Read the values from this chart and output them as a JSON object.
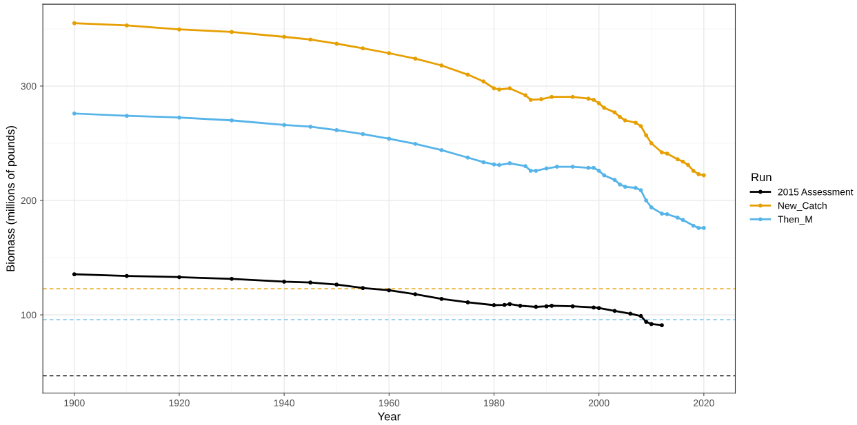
{
  "chart_data": {
    "type": "line",
    "xlabel": "Year",
    "ylabel": "Biomass (millions of pounds)",
    "legend_title": "Run",
    "xlim": [
      1894,
      2026
    ],
    "xticks": [
      1900,
      1920,
      1940,
      1960,
      1980,
      2000,
      2020
    ],
    "ylim": [
      31.6,
      371.5
    ],
    "yticks": [
      100,
      200,
      300
    ],
    "grid": true,
    "legend": "right",
    "marker": "circle",
    "line_style": "solid",
    "series": [
      {
        "name": "2015 Assessment",
        "color": "#000000",
        "x": [
          1900,
          1910,
          1920,
          1930,
          1940,
          1945,
          1950,
          1955,
          1960,
          1965,
          1970,
          1975,
          1980,
          1982,
          1983,
          1985,
          1988,
          1990,
          1991,
          1995,
          1999,
          2000,
          2003,
          2006,
          2008,
          2009,
          2010,
          2012
        ],
        "values": [
          135.5,
          134,
          133,
          131.5,
          129,
          128.3,
          126.5,
          123.5,
          121.5,
          118,
          114,
          111,
          108.5,
          108.7,
          109.5,
          108,
          107,
          107.5,
          108,
          107.5,
          106.5,
          106,
          103.5,
          101,
          99,
          94,
          92,
          91
        ]
      },
      {
        "name": "New_Catch",
        "color": "#e69f00",
        "x": [
          1900,
          1910,
          1920,
          1930,
          1940,
          1945,
          1950,
          1955,
          1960,
          1965,
          1970,
          1975,
          1978,
          1980,
          1981,
          1983,
          1986,
          1987,
          1989,
          1991,
          1995,
          1998,
          1999,
          2000,
          2001,
          2003,
          2004,
          2005,
          2007,
          2008,
          2009,
          2010,
          2012,
          2013,
          2015,
          2016,
          2017,
          2018,
          2019,
          2020
        ],
        "values": [
          355,
          353,
          349.5,
          347.3,
          343,
          340.7,
          337,
          333,
          328.7,
          324,
          318,
          310,
          304,
          298,
          297,
          298,
          292,
          288,
          288.5,
          290.5,
          290.5,
          289,
          288,
          285,
          281,
          277,
          273,
          270,
          268,
          265,
          257,
          250,
          242,
          241,
          236,
          234,
          231,
          226,
          223,
          222
        ]
      },
      {
        "name": "Then_M",
        "color": "#56b4e9",
        "x": [
          1900,
          1910,
          1920,
          1930,
          1940,
          1945,
          1950,
          1955,
          1960,
          1965,
          1970,
          1975,
          1978,
          1980,
          1981,
          1983,
          1986,
          1987,
          1988,
          1990,
          1992,
          1995,
          1998,
          1999,
          2000,
          2001,
          2003,
          2004,
          2005,
          2007,
          2008,
          2009,
          2010,
          2012,
          2013,
          2015,
          2016,
          2018,
          2019,
          2020
        ],
        "values": [
          276,
          274,
          272.5,
          270,
          266,
          264.5,
          261.5,
          258,
          254,
          249.5,
          244,
          237.5,
          233.5,
          231.5,
          231,
          232.5,
          230,
          226,
          226,
          228,
          229.5,
          229.5,
          228.5,
          228.5,
          226,
          222,
          218,
          214,
          212,
          211,
          209,
          200,
          194,
          188.5,
          188,
          185,
          183,
          178,
          176,
          176
        ]
      }
    ],
    "ref_lines": [
      {
        "axis": "y",
        "value": 122.8,
        "color": "#e69f00",
        "line_style": "dashed"
      },
      {
        "axis": "y",
        "value": 95.8,
        "color": "#56b4e9",
        "line_style": "dashed"
      },
      {
        "axis": "y",
        "value": 46.7,
        "color": "#000000",
        "line_style": "dashed"
      }
    ]
  }
}
